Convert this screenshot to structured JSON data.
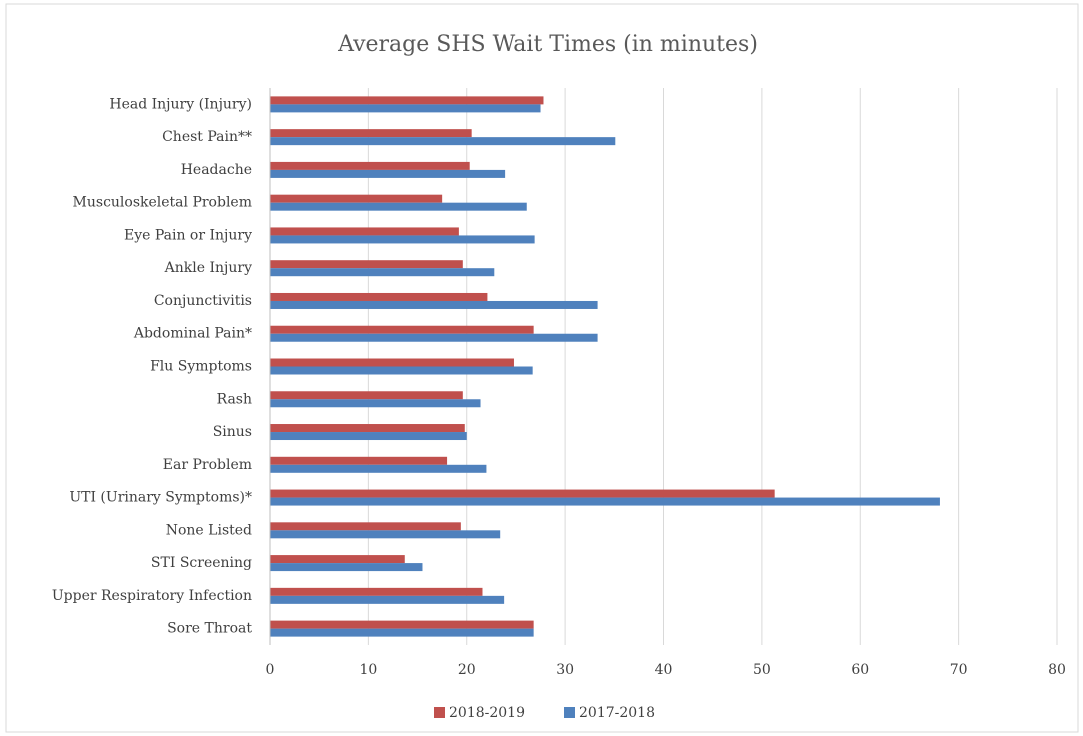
{
  "chart_data": {
    "type": "hbar",
    "title": "Average SHS Wait Times (in minutes)",
    "categories": [
      "Head Injury (Injury)",
      "Chest Pain**",
      "Headache",
      "Musculoskeletal Problem",
      "Eye Pain or Injury",
      "Ankle Injury",
      "Conjunctivitis",
      "Abdominal Pain*",
      "Flu Symptoms",
      "Rash",
      "Sinus",
      "Ear Problem",
      "UTI (Urinary Symptoms)*",
      "None Listed",
      "STI Screening",
      "Upper Respiratory Infection",
      "Sore Throat"
    ],
    "series": [
      {
        "name": "2018-2019",
        "color": "#c0504d",
        "values": [
          27.8,
          20.5,
          20.3,
          17.5,
          19.2,
          19.6,
          22.1,
          26.8,
          24.8,
          19.6,
          19.8,
          18.0,
          51.3,
          19.4,
          13.7,
          21.6,
          26.8
        ]
      },
      {
        "name": "2017-2018",
        "color": "#4f81bd",
        "values": [
          27.5,
          35.1,
          23.9,
          26.1,
          26.9,
          22.8,
          33.3,
          33.3,
          26.7,
          21.4,
          20.0,
          22.0,
          68.1,
          23.4,
          15.5,
          23.8,
          26.8
        ]
      }
    ],
    "xlim": [
      0,
      80
    ],
    "xticks": [
      0,
      10,
      20,
      30,
      40,
      50,
      60,
      70,
      80
    ],
    "grid": true,
    "legend": "bottom"
  }
}
